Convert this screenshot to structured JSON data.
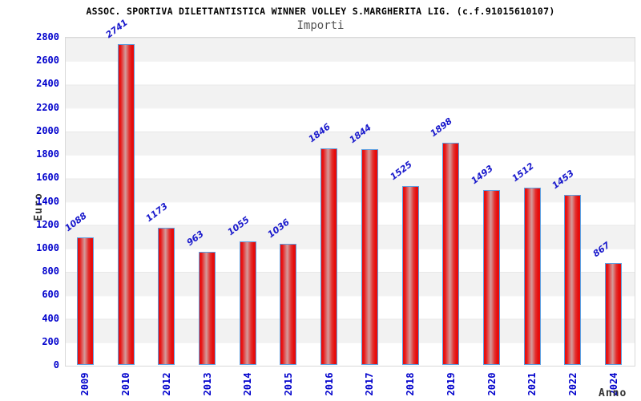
{
  "header": {
    "title": "ASSOC. SPORTIVA DILETTANTISTICA WINNER VOLLEY S.MARGHERITA LIG. (c.f.91015610107)",
    "subtitle": "Importi"
  },
  "chart_data": {
    "type": "bar",
    "title": "ASSOC. SPORTIVA DILETTANTISTICA WINNER VOLLEY S.MARGHERITA LIG. (c.f.91015610107)",
    "subtitle": "Importi",
    "xlabel": "Anno",
    "ylabel": "Euro",
    "categories": [
      "2009",
      "2010",
      "2012",
      "2013",
      "2014",
      "2015",
      "2016",
      "2017",
      "2018",
      "2019",
      "2020",
      "2021",
      "2022",
      "2024"
    ],
    "values": [
      1088,
      2741,
      1173,
      963,
      1055,
      1036,
      1846,
      1844,
      1525,
      1898,
      1493,
      1512,
      1453,
      867
    ],
    "data_labels_shown": true,
    "ylim": [
      0,
      2800
    ],
    "ytick_step": 200,
    "grid": "horizontal-bands-alternating",
    "legend": "none",
    "colors": {
      "bar_fill_edge": "#e60c0c",
      "bar_fill_center": "#d49c9c",
      "bar_border": "#5e9fe0",
      "tick_text": "#0000cc",
      "value_label_text": "#1a1acc",
      "title_text": "#000000",
      "subtitle_text": "#555555",
      "axis_title_text": "#333333",
      "band_gray": "#f2f2f2",
      "band_white": "#ffffff",
      "plot_border": "#d9d9d9",
      "background": "#ffffff"
    }
  }
}
